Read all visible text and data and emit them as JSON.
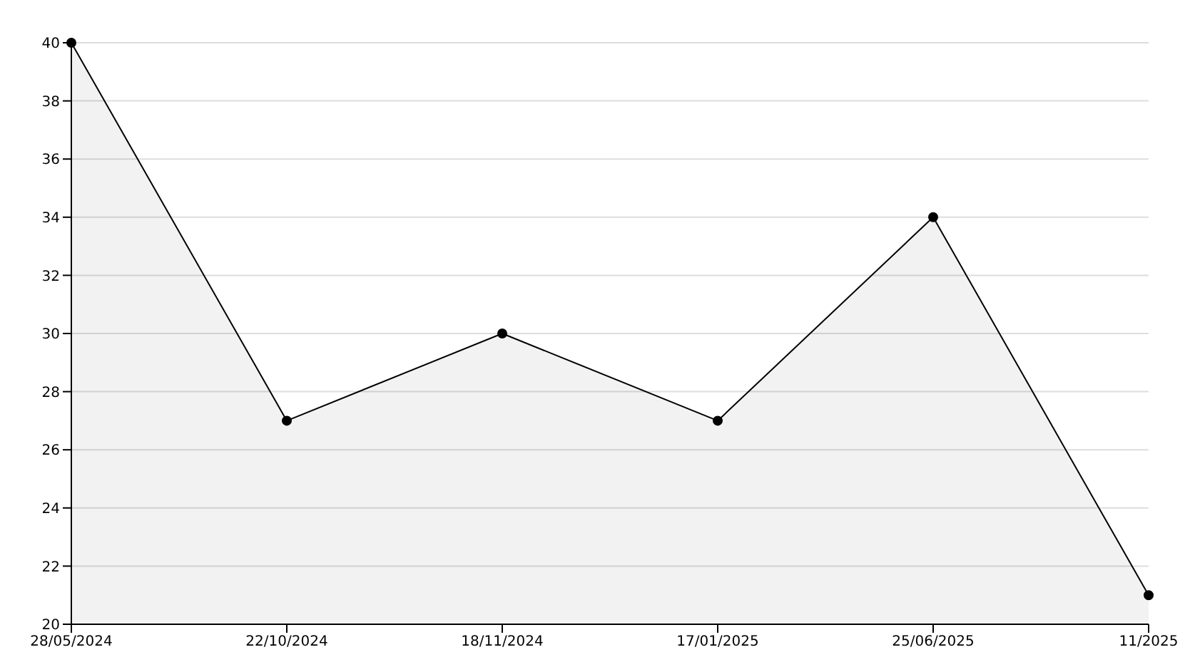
{
  "chart_data": {
    "type": "area",
    "categories": [
      "28/05/2024",
      "22/10/2024",
      "18/11/2024",
      "17/01/2025",
      "25/06/2025",
      "11/2025"
    ],
    "series": [
      {
        "color": "#000000",
        "values": [
          40,
          27,
          30,
          27,
          34,
          21
        ]
      }
    ],
    "ylim": [
      20,
      40
    ],
    "yticks": [
      20,
      22,
      24,
      26,
      28,
      30,
      32,
      34,
      36,
      38,
      40
    ],
    "grid": "y",
    "marker": "circle",
    "line_style": "solid"
  }
}
